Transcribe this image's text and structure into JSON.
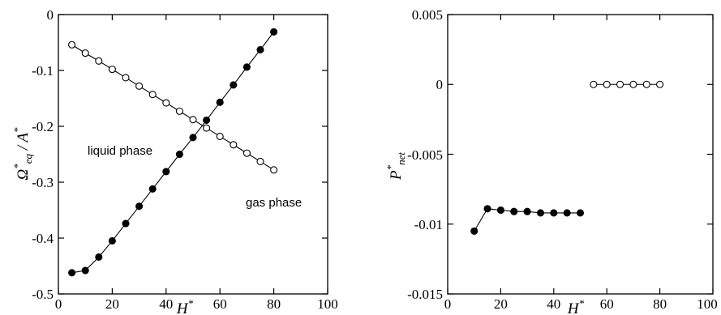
{
  "chart_data": [
    {
      "type": "scatter",
      "xlabel": "H*",
      "ylabel": "Ω*eq / A*",
      "xlim": [
        0,
        100
      ],
      "ylim": [
        -0.5,
        0
      ],
      "xticks": [
        "0",
        "20",
        "40",
        "60",
        "80",
        "100"
      ],
      "yticks": [
        "0",
        "-0.1",
        "-0.2",
        "-0.3",
        "-0.4",
        "-0.5"
      ],
      "annotations": [
        "liquid phase",
        "gas phase"
      ],
      "series": [
        {
          "marker": "filled-circle",
          "x": [
            5,
            10,
            15,
            20,
            25,
            30,
            35,
            40,
            45,
            50,
            55,
            60,
            65,
            70,
            75,
            80
          ],
          "y": [
            -0.462,
            -0.458,
            -0.434,
            -0.405,
            -0.374,
            -0.343,
            -0.312,
            -0.281,
            -0.25,
            -0.22,
            -0.189,
            -0.157,
            -0.126,
            -0.094,
            -0.063,
            -0.031
          ]
        },
        {
          "marker": "open-circle",
          "x": [
            5,
            10,
            15,
            20,
            25,
            30,
            35,
            40,
            45,
            50,
            55,
            60,
            65,
            70,
            75,
            80
          ],
          "y": [
            -0.054,
            -0.069,
            -0.083,
            -0.098,
            -0.113,
            -0.128,
            -0.143,
            -0.158,
            -0.173,
            -0.188,
            -0.203,
            -0.218,
            -0.233,
            -0.248,
            -0.263,
            -0.278
          ]
        }
      ]
    },
    {
      "type": "scatter",
      "xlabel": "H*",
      "ylabel": "P*net",
      "xlim": [
        0,
        100
      ],
      "ylim": [
        -0.015,
        0.005
      ],
      "xticks": [
        "0",
        "20",
        "40",
        "60",
        "80",
        "100"
      ],
      "yticks": [
        "0.005",
        "0",
        "-0.005",
        "-0.01",
        "-0.015"
      ],
      "series": [
        {
          "marker": "filled-circle",
          "x": [
            10,
            15,
            20,
            25,
            30,
            35,
            40,
            45,
            50
          ],
          "y": [
            -0.0105,
            -0.0089,
            -0.009,
            -0.0091,
            -0.0091,
            -0.0092,
            -0.0092,
            -0.0092,
            -0.0092
          ]
        },
        {
          "marker": "open-circle",
          "x": [
            55,
            60,
            65,
            70,
            75,
            80
          ],
          "y": [
            0,
            0,
            0,
            0,
            0,
            0
          ]
        }
      ]
    }
  ]
}
